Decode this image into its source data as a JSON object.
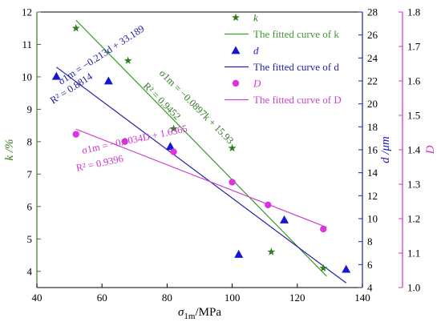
{
  "chart_data": {
    "type": "scatter",
    "x": {
      "label_main": "σ",
      "label_sub": "1m",
      "label_unit": "/MPa",
      "range": [
        40,
        140
      ],
      "ticks": [
        40,
        60,
        80,
        100,
        120,
        140
      ]
    },
    "axes": {
      "k": {
        "label": "k /%",
        "range": [
          3.5,
          12
        ],
        "ticks": [
          4,
          5,
          6,
          7,
          8,
          9,
          10,
          11,
          12
        ],
        "color": "#3a7d1e"
      },
      "d": {
        "label": "d /μm",
        "range": [
          4,
          28
        ],
        "ticks": [
          4,
          6,
          8,
          10,
          12,
          14,
          16,
          18,
          20,
          22,
          24,
          26,
          28
        ],
        "color": "#1a1ab8"
      },
      "D": {
        "label": "D",
        "range": [
          1.0,
          1.8
        ],
        "ticks": [
          "1.0",
          "1.1",
          "1.2",
          "1.3",
          "1.4",
          "1.5",
          "1.6",
          "1.7",
          "1.8"
        ],
        "color": "#cc33cc"
      }
    },
    "series": [
      {
        "name": "k",
        "axis": "k",
        "marker": "star",
        "color": "#2e7d1f",
        "points": [
          [
            52,
            11.5
          ],
          [
            68,
            10.5
          ],
          [
            82,
            8.4
          ],
          [
            100,
            7.8
          ],
          [
            112,
            4.6
          ],
          [
            128,
            4.1
          ]
        ]
      },
      {
        "name": "d",
        "axis": "d",
        "marker": "triangle",
        "color": "#1515d4",
        "points": [
          [
            46,
            22.4
          ],
          [
            62,
            22.0
          ],
          [
            81,
            16.3
          ],
          [
            102,
            6.9
          ],
          [
            116,
            9.9
          ],
          [
            135,
            5.6
          ]
        ]
      },
      {
        "name": "D",
        "axis": "D",
        "marker": "circle",
        "color": "#dd33dd",
        "points": [
          [
            52,
            1.445
          ],
          [
            67,
            1.424
          ],
          [
            82,
            1.394
          ],
          [
            100,
            1.306
          ],
          [
            111,
            1.24
          ],
          [
            128,
            1.17
          ]
        ]
      }
    ],
    "fits": [
      {
        "name": "The fitted curve of k",
        "axis": "k",
        "color": "#3a9a2a",
        "from": [
          52,
          11.75
        ],
        "to": [
          129,
          3.85
        ]
      },
      {
        "name": "The fitted curve of d",
        "axis": "d",
        "color": "#2323a8",
        "from": [
          46,
          23.2
        ],
        "to": [
          135,
          4.4
        ]
      },
      {
        "name": "The fitted curve of D",
        "axis": "D",
        "color": "#cc44cc",
        "from": [
          52,
          1.46
        ],
        "to": [
          129,
          1.175
        ]
      }
    ],
    "legend": {
      "placement": "top-right",
      "items": [
        {
          "kind": "marker",
          "marker": "star",
          "color": "#2e7d1f",
          "text": "k",
          "italic": true
        },
        {
          "kind": "line",
          "color": "#3a9a2a",
          "text": "The fitted curve of k"
        },
        {
          "kind": "marker",
          "marker": "triangle",
          "color": "#1515d4",
          "text": "d",
          "italic": true
        },
        {
          "kind": "line",
          "color": "#2323a8",
          "text": "The fitted curve of d"
        },
        {
          "kind": "marker",
          "marker": "circle",
          "color": "#dd33dd",
          "text": "D",
          "italic": true
        },
        {
          "kind": "line",
          "color": "#cc44cc",
          "text": "The fitted curve of D"
        }
      ]
    },
    "annotations": [
      {
        "series": "k",
        "equation": "σ1m = −0.0897k + 15.93",
        "r2": "R² = 0.9452",
        "color": "#2e7d1f"
      },
      {
        "series": "d",
        "equation": "σ1m = −0.213d + 33.189",
        "r2": "R² = 0.8814",
        "color": "#1a1a99"
      },
      {
        "series": "D",
        "equation": "σ1m = −0.0034D + 1.6365",
        "r2": "R² = 0.9396",
        "color": "#cc33cc"
      }
    ]
  }
}
